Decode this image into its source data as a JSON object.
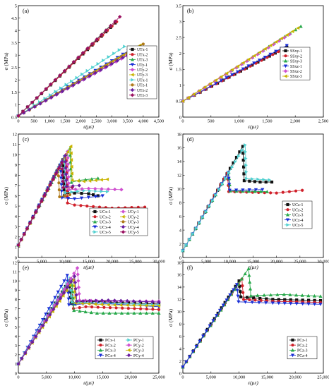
{
  "figure": {
    "panels": [
      "a",
      "b",
      "c",
      "d",
      "e",
      "f"
    ]
  },
  "chart_data": [
    {
      "panel_label": "(a)",
      "type": "line",
      "xlabel": "ε(με)",
      "ylabel": "σ (MPa)",
      "xlim": [
        0,
        4500
      ],
      "ylim": [
        0.5,
        5.0
      ],
      "xticks": [
        "0",
        "500",
        "1,000",
        "1,500",
        "2,000",
        "2,500",
        "3,000",
        "3,500",
        "4,000",
        "4,500"
      ],
      "yticks": [
        "0.5",
        "1",
        "1.5",
        "2",
        "2.5",
        "3",
        "3.5",
        "4",
        "4.5",
        "5"
      ],
      "series": [
        {
          "name": "UTx-1",
          "color": "#111111",
          "marker": "square",
          "x": [
            0,
            3100
          ],
          "y": [
            0.55,
            4.3
          ]
        },
        {
          "name": "UTx-2",
          "color": "#d0202a",
          "marker": "circle",
          "x": [
            0,
            3150
          ],
          "y": [
            0.55,
            4.35
          ]
        },
        {
          "name": "UTx-3",
          "color": "#27a84a",
          "marker": "triangle",
          "x": [
            0,
            2950
          ],
          "y": [
            0.55,
            4.2
          ]
        },
        {
          "name": "UTy-1",
          "color": "#1a2fd6",
          "marker": "tri-down",
          "x": [
            0,
            3700
          ],
          "y": [
            0.55,
            3.3
          ]
        },
        {
          "name": "UTy-2",
          "color": "#cf50cf",
          "marker": "diamond",
          "x": [
            0,
            3650
          ],
          "y": [
            0.55,
            3.1
          ]
        },
        {
          "name": "UTy-3",
          "color": "#c9b400",
          "marker": "tri-left",
          "x": [
            0,
            3900
          ],
          "y": [
            0.55,
            3.4
          ]
        },
        {
          "name": "UTx-1",
          "color": "#50d0d0",
          "marker": "tri-right",
          "x": [
            0,
            3400
          ],
          "y": [
            0.55,
            3.35
          ]
        },
        {
          "name": "UTz-1",
          "color": "#b07a1a",
          "marker": "hexagon",
          "x": [
            0,
            4000
          ],
          "y": [
            0.55,
            3.45
          ]
        },
        {
          "name": "UTz-2",
          "color": "#6a1fa0",
          "marker": "star",
          "x": [
            0,
            3700
          ],
          "y": [
            0.55,
            3.15
          ]
        },
        {
          "name": "UTz-3",
          "color": "#9a1060",
          "marker": "pentagon",
          "x": [
            0,
            3250
          ],
          "y": [
            0.55,
            4.55
          ]
        }
      ]
    },
    {
      "panel_label": "(b)",
      "type": "line",
      "xlabel": "ε(με)",
      "ylabel": "σ (MPa)",
      "xlim": [
        0,
        2500
      ],
      "ylim": [
        0,
        3.5
      ],
      "xticks": [
        "0",
        "500",
        "1,000",
        "1,500",
        "2,000",
        "2,500"
      ],
      "yticks": [
        "0",
        "0.5",
        "1",
        "1.5",
        "2",
        "2.5",
        "3",
        "3.5"
      ],
      "series": [
        {
          "name": "SSxy-1",
          "color": "#111111",
          "marker": "square",
          "x": [
            0,
            1850
          ],
          "y": [
            0.5,
            2.2
          ]
        },
        {
          "name": "SSxy-2",
          "color": "#d0202a",
          "marker": "circle",
          "x": [
            0,
            1800
          ],
          "y": [
            0.5,
            2.15
          ]
        },
        {
          "name": "SSxy-3",
          "color": "#27a84a",
          "marker": "triangle",
          "x": [
            0,
            2100
          ],
          "y": [
            0.5,
            2.85
          ]
        },
        {
          "name": "SSxz-1",
          "color": "#1a2fd6",
          "marker": "tri-down",
          "x": [
            0,
            1850
          ],
          "y": [
            0.5,
            2.25
          ]
        },
        {
          "name": "SSxz-2",
          "color": "#cf50cf",
          "marker": "diamond",
          "x": [
            0,
            1900
          ],
          "y": [
            0.5,
            2.6
          ]
        },
        {
          "name": "SSxz-3",
          "color": "#c9b400",
          "marker": "tri-left",
          "x": [
            0,
            2050
          ],
          "y": [
            0.5,
            2.8
          ]
        }
      ]
    },
    {
      "panel_label": "(c)",
      "type": "line",
      "xlabel": "ε(με)",
      "ylabel": "σ (MPa)",
      "xlim": [
        0,
        30000
      ],
      "ylim": [
        0,
        12
      ],
      "xticks": [
        "0",
        "5,000",
        "10,000",
        "15,000",
        "20,000",
        "25,000",
        "30,000"
      ],
      "yticks": [
        "0",
        "1",
        "2",
        "3",
        "4",
        "5",
        "6",
        "7",
        "8",
        "9",
        "10",
        "11",
        "12"
      ],
      "series": [
        {
          "name": "UCx-1",
          "color": "#111111",
          "marker": "square",
          "x": [
            0,
            9500,
            9800,
            10500,
            15000,
            17000
          ],
          "y": [
            1.2,
            9.5,
            6.0,
            6.3,
            6.2,
            6.0
          ]
        },
        {
          "name": "UCx-2",
          "color": "#d0202a",
          "marker": "circle",
          "x": [
            0,
            10200,
            10500,
            12000,
            20000,
            27000
          ],
          "y": [
            1.2,
            10.0,
            5.3,
            5.1,
            4.8,
            4.9
          ]
        },
        {
          "name": "UCx-3",
          "color": "#27a84a",
          "marker": "triangle",
          "x": [
            0,
            11000,
            11300,
            13000,
            17000
          ],
          "y": [
            1.2,
            10.6,
            7.3,
            7.5,
            7.7
          ]
        },
        {
          "name": "UCx-4",
          "color": "#1a2fd6",
          "marker": "tri-down",
          "x": [
            0,
            9000,
            9300,
            12000,
            18000
          ],
          "y": [
            1.2,
            9.0,
            5.8,
            5.7,
            6.0
          ]
        },
        {
          "name": "UCx-5",
          "color": "#50d0d0",
          "marker": "tri-right",
          "x": [
            0,
            9800,
            10100,
            14000,
            19000
          ],
          "y": [
            1.2,
            9.8,
            6.3,
            6.5,
            6.4
          ]
        },
        {
          "name": "UCy-1",
          "color": "#cf50cf",
          "marker": "diamond",
          "x": [
            0,
            10500,
            10800,
            15000,
            22000
          ],
          "y": [
            1.2,
            10.3,
            6.6,
            6.7,
            6.6
          ]
        },
        {
          "name": "UCy-2",
          "color": "#c9b400",
          "marker": "tri-left",
          "x": [
            0,
            11200,
            11500,
            14000,
            19000
          ],
          "y": [
            1.2,
            10.8,
            7.5,
            7.4,
            7.6
          ]
        },
        {
          "name": "UCy-3",
          "color": "#b07a1a",
          "marker": "hexagon",
          "x": [
            0,
            8500,
            8800,
            11000
          ],
          "y": [
            1.2,
            8.6,
            5.9,
            6.1
          ]
        },
        {
          "name": "UCy-4",
          "color": "#6a1fa0",
          "marker": "star",
          "x": [
            0,
            10000,
            10300,
            13000
          ],
          "y": [
            1.2,
            9.9,
            6.9,
            7.0
          ]
        },
        {
          "name": "UCy-5",
          "color": "#9a1060",
          "marker": "pentagon",
          "x": [
            0,
            9300,
            9600,
            11500
          ],
          "y": [
            1.2,
            9.2,
            6.8,
            6.8
          ]
        }
      ]
    },
    {
      "panel_label": "(d)",
      "type": "line",
      "xlabel": "ε(με)",
      "ylabel": "σ (MPa)",
      "xlim": [
        0,
        30000
      ],
      "ylim": [
        0,
        18
      ],
      "xticks": [
        "0",
        "5,000",
        "10,000",
        "15,000",
        "20,000",
        "25,000",
        "30,000"
      ],
      "yticks": [
        "0",
        "2",
        "4",
        "6",
        "8",
        "10",
        "12",
        "14",
        "16",
        "18"
      ],
      "series": [
        {
          "name": "UCz-1",
          "color": "#111111",
          "marker": "square",
          "x": [
            0,
            12800,
            13100,
            16500,
            19000
          ],
          "y": [
            1.0,
            16.2,
            11.2,
            11.0,
            11.0
          ]
        },
        {
          "name": "UCz-2",
          "color": "#d0202a",
          "marker": "circle",
          "x": [
            0,
            9500,
            9800,
            20000,
            25500
          ],
          "y": [
            1.0,
            12.3,
            9.6,
            9.4,
            9.8
          ]
        },
        {
          "name": "UCz-3",
          "color": "#27a84a",
          "marker": "triangle",
          "x": [
            0,
            9800,
            10100,
            18000
          ],
          "y": [
            1.0,
            12.4,
            9.7,
            9.6
          ]
        },
        {
          "name": "UCz-4",
          "color": "#1a2fd6",
          "marker": "tri-down",
          "x": [
            0,
            9700,
            10000,
            17000
          ],
          "y": [
            1.0,
            12.4,
            9.8,
            9.9
          ]
        },
        {
          "name": "UCz-5",
          "color": "#50d0d0",
          "marker": "tri-right",
          "x": [
            0,
            13300,
            13600,
            18500
          ],
          "y": [
            1.0,
            16.4,
            11.5,
            11.3
          ]
        }
      ]
    },
    {
      "panel_label": "(e)",
      "type": "line",
      "xlabel": "ε(με)",
      "ylabel": "σ (MPa)",
      "xlim": [
        0,
        25000
      ],
      "ylim": [
        0,
        12
      ],
      "xticks": [
        "0",
        "5,000",
        "10,000",
        "15,000",
        "20,000",
        "25,000"
      ],
      "yticks": [
        "0",
        "1",
        "2",
        "3",
        "4",
        "5",
        "6",
        "7",
        "8",
        "9",
        "10",
        "11",
        "12"
      ],
      "series": [
        {
          "name": "PCx-1",
          "color": "#111111",
          "marker": "square",
          "x": [
            0,
            9000,
            9400,
            12000,
            25000
          ],
          "y": [
            1.0,
            10.0,
            7.6,
            7.8,
            7.5
          ]
        },
        {
          "name": "PCx-2",
          "color": "#d0202a",
          "marker": "circle",
          "x": [
            0,
            9300,
            9800,
            12000,
            25000
          ],
          "y": [
            1.0,
            9.8,
            7.0,
            7.2,
            6.9
          ]
        },
        {
          "name": "PCx-3",
          "color": "#27a84a",
          "marker": "triangle",
          "x": [
            0,
            9500,
            9900,
            14000,
            25000
          ],
          "y": [
            1.0,
            10.2,
            6.8,
            6.5,
            6.5
          ]
        },
        {
          "name": "PCx-4",
          "color": "#1a2fd6",
          "marker": "tri-down",
          "x": [
            0,
            8700,
            9000,
            14000,
            25000
          ],
          "y": [
            1.0,
            10.6,
            7.4,
            7.6,
            7.2
          ]
        },
        {
          "name": "PCy-1",
          "color": "#50d0d0",
          "marker": "tri-right",
          "x": [
            0,
            9200,
            9600,
            15000,
            25000
          ],
          "y": [
            1.0,
            10.3,
            7.7,
            7.6,
            7.4
          ]
        },
        {
          "name": "PCy-2",
          "color": "#cf50cf",
          "marker": "diamond",
          "x": [
            0,
            10500,
            10900,
            16000,
            25000
          ],
          "y": [
            1.0,
            11.4,
            7.9,
            7.8,
            7.8
          ]
        },
        {
          "name": "PCy-3",
          "color": "#c9b400",
          "marker": "tri-left",
          "x": [
            0,
            9800,
            10200,
            16000,
            25000
          ],
          "y": [
            1.0,
            10.1,
            7.6,
            7.4,
            7.3
          ]
        },
        {
          "name": "PCy-4",
          "color": "#6a1fa0",
          "marker": "star",
          "x": [
            0,
            10000,
            10400,
            16000,
            25000
          ],
          "y": [
            1.0,
            10.5,
            7.8,
            7.9,
            7.7
          ]
        }
      ]
    },
    {
      "panel_label": "(f)",
      "type": "line",
      "xlabel": "ε(με)",
      "ylabel": "σ (MPa)",
      "xlim": [
        0,
        25000
      ],
      "ylim": [
        0,
        18
      ],
      "xticks": [
        "0",
        "5,000",
        "10,000",
        "15,000",
        "20,000",
        "25,000"
      ],
      "yticks": [
        "0",
        "2",
        "4",
        "6",
        "8",
        "10",
        "12",
        "14",
        "16",
        "18"
      ],
      "series": [
        {
          "name": "PCz-1",
          "color": "#111111",
          "marker": "square",
          "x": [
            0,
            10000,
            10300,
            16000,
            24500
          ],
          "y": [
            1.0,
            15.0,
            12.4,
            12.0,
            11.8
          ]
        },
        {
          "name": "PCz-2",
          "color": "#d0202a",
          "marker": "circle",
          "x": [
            0,
            10500,
            10800,
            16000,
            24500
          ],
          "y": [
            1.0,
            15.3,
            12.0,
            11.7,
            11.5
          ]
        },
        {
          "name": "PCz-3",
          "color": "#27a84a",
          "marker": "triangle",
          "x": [
            0,
            11700,
            12100,
            18000,
            24500
          ],
          "y": [
            1.0,
            17.0,
            12.6,
            12.8,
            12.5
          ]
        },
        {
          "name": "PCz-4",
          "color": "#1a2fd6",
          "marker": "tri-down",
          "x": [
            0,
            9600,
            9900,
            16000,
            24500
          ],
          "y": [
            1.0,
            14.4,
            11.6,
            11.4,
            11.2
          ]
        }
      ]
    }
  ]
}
